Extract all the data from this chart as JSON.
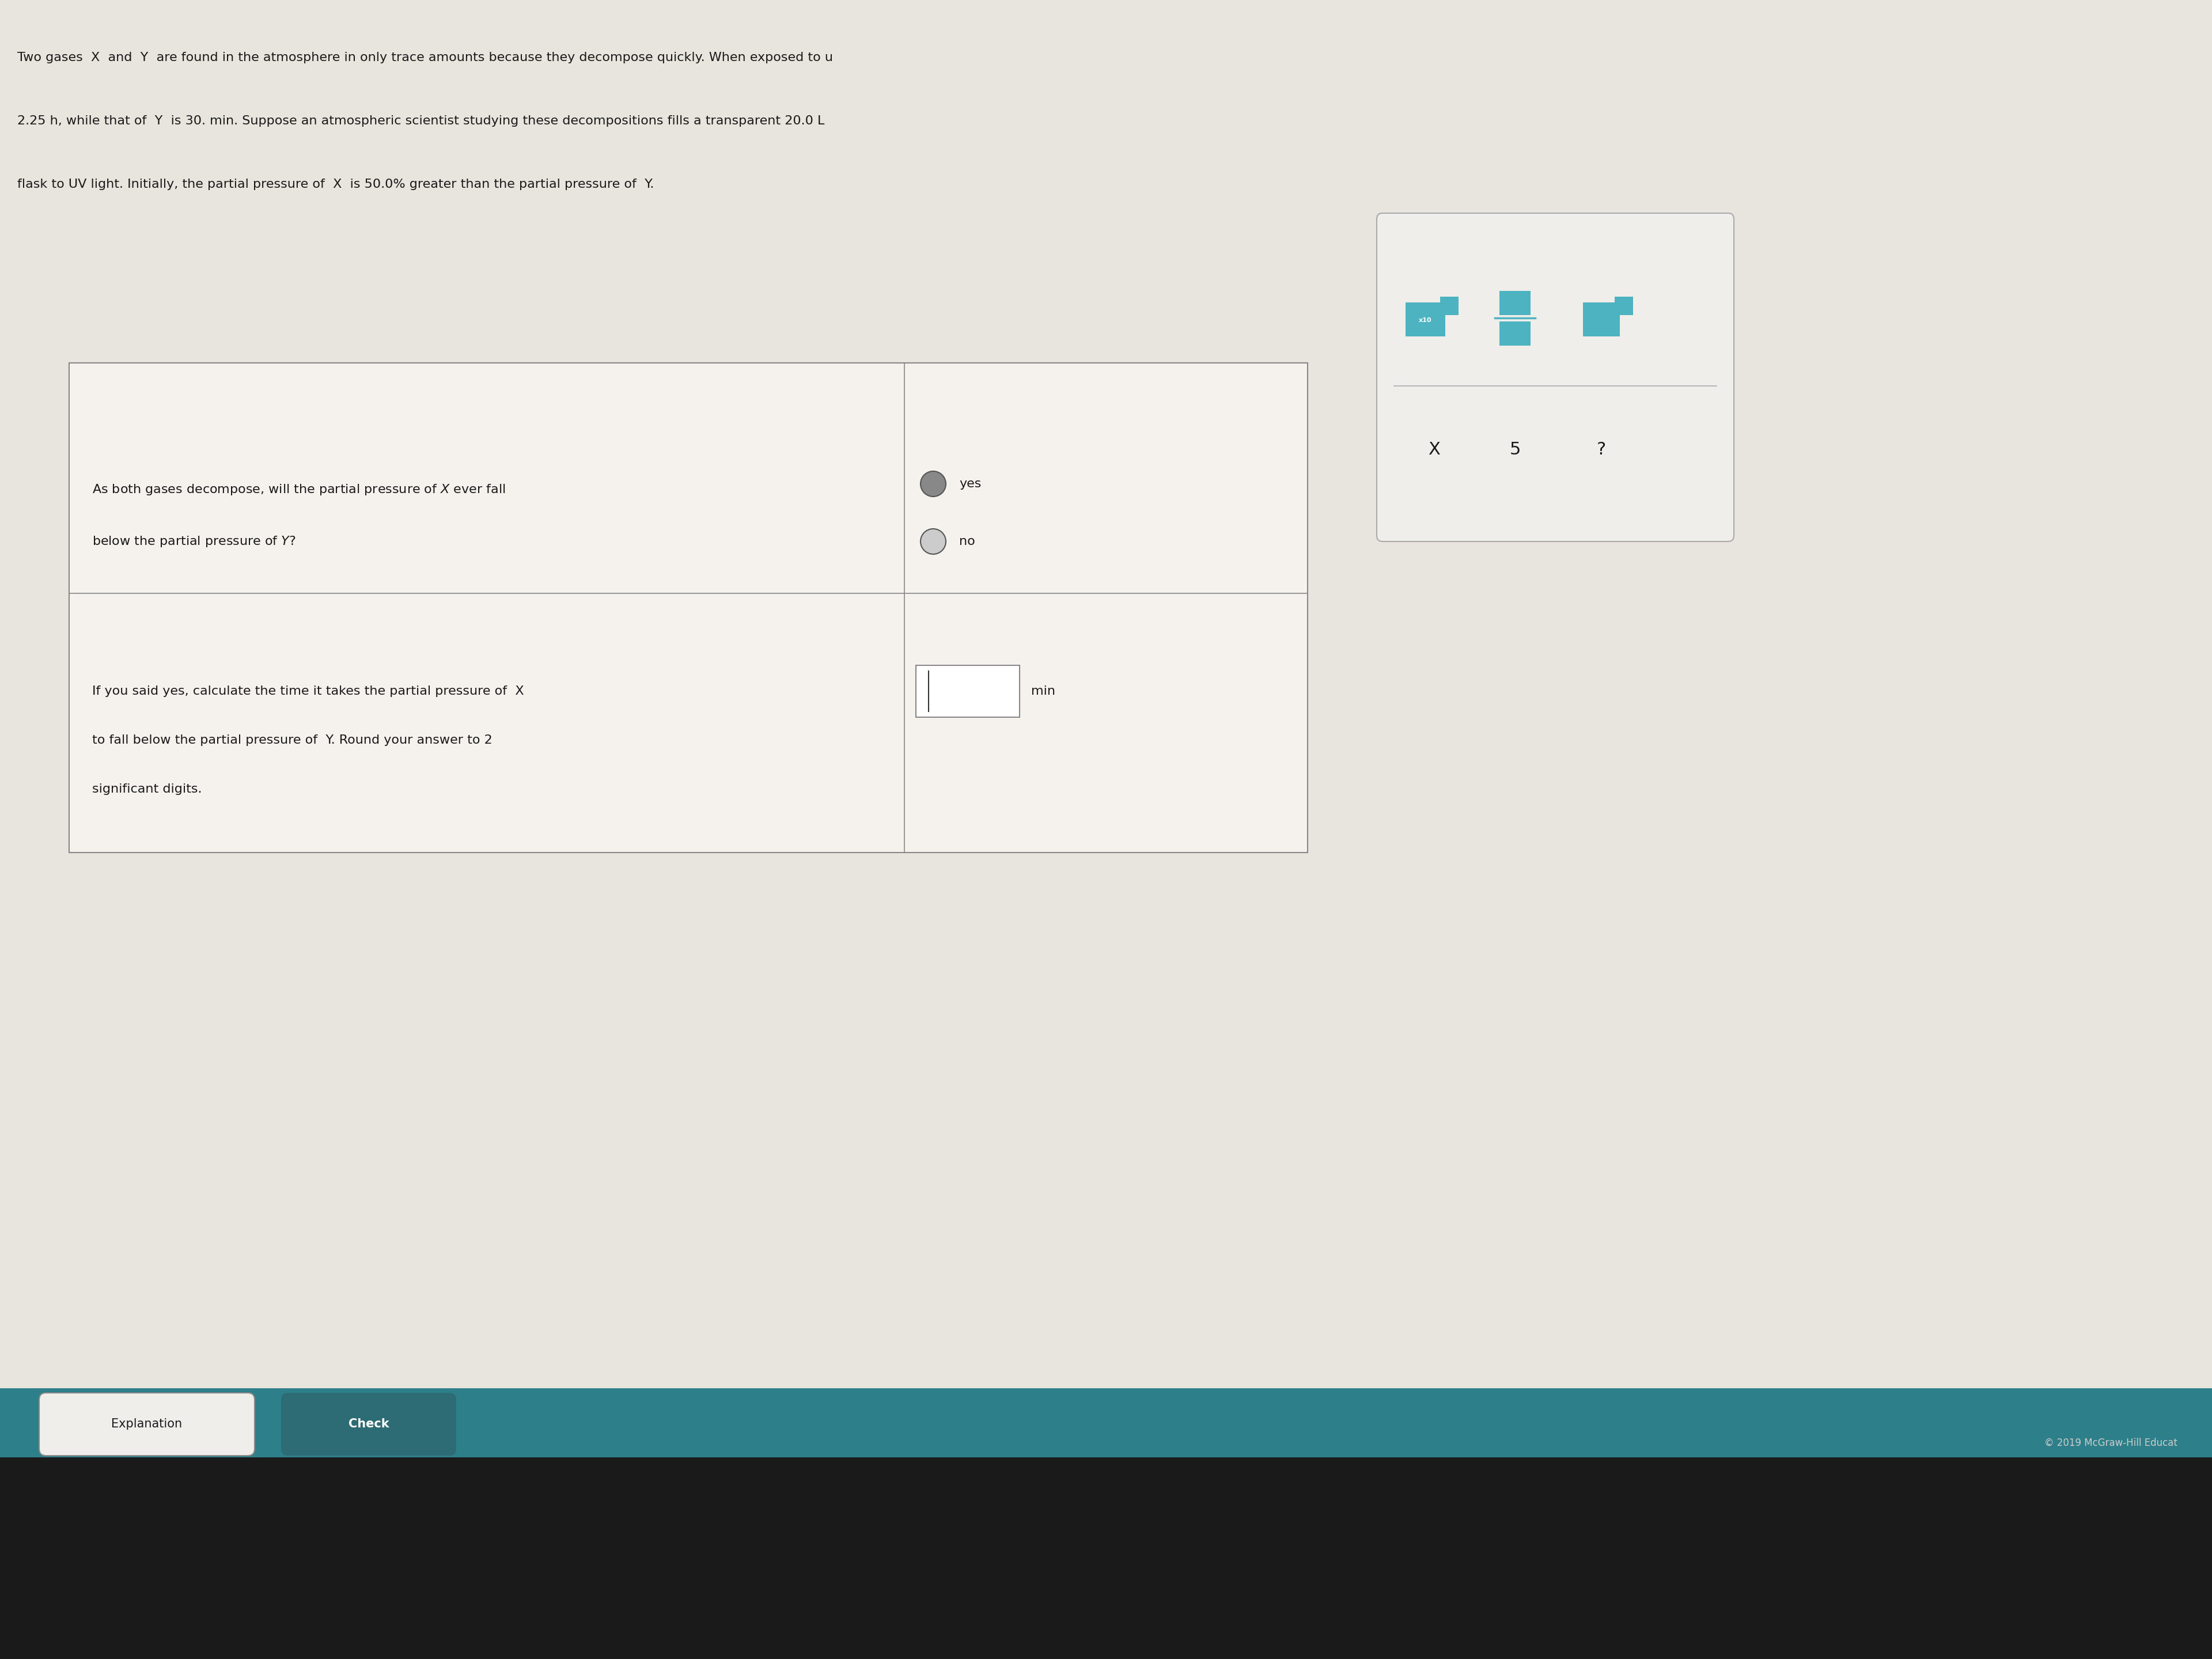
{
  "bg_color": "#e8e4de",
  "page_bg": "#d4cfc8",
  "text_color": "#1a1a1a",
  "title_lines": [
    "Two gases  X  and  Y  are found in the atmosphere in only trace amounts because they decompose quickly. When exposed to u",
    "2.25 h, while that of  Y  is 30. min. Suppose an atmospheric scientist studying these decompositions fills a transparent 20.0 L",
    "flask to UV light. Initially, the partial pressure of  X  is 50.0% greater than the partial pressure of  Y."
  ],
  "option_yes": "yes",
  "option_no": "no",
  "q1_line1": "As both gases decompose, will the partial pressure of  X  ever fall",
  "q1_line2": "below the partial pressure of  Y?",
  "q2_lines": [
    "If you said yes, calculate the time it takes the partial pressure of  X",
    "to fall below the partial pressure of  Y. Round your answer to 2",
    "significant digits."
  ],
  "unit_label": "min",
  "explanation_btn": "Explanation",
  "check_btn": "Check",
  "copyright": "© 2019 McGraw-Hill Educat",
  "toolbar_bottom": [
    "X",
    "5",
    "?"
  ],
  "teal_bar_color": "#2d7f8a",
  "check_btn_color": "#2d6b75",
  "explanation_btn_color": "#f0eeeb",
  "toolbar_teal": "#4db3c0",
  "toolbar_gray": "#b0b0b0"
}
